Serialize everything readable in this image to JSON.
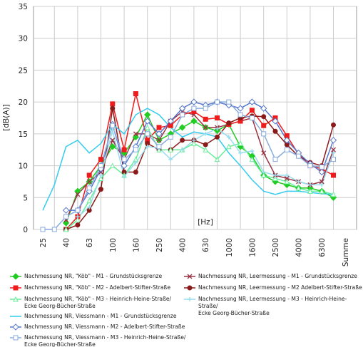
{
  "chart_data": {
    "type": "line",
    "y_label": "[dB(A)]",
    "x_label": "[Hz]",
    "categories": [
      "25",
      null,
      "40",
      null,
      "63",
      null,
      "100",
      null,
      "160",
      null,
      "250",
      null,
      "400",
      null,
      "630",
      null,
      "1000",
      null,
      "1600",
      null,
      "2500",
      null,
      "4000",
      null,
      "6300",
      null,
      "Summe"
    ],
    "ylim": [
      0,
      35
    ],
    "yticks": [
      0,
      5,
      10,
      15,
      20,
      25,
      30,
      35
    ],
    "grid": true,
    "legend": "bottom",
    "series": [
      {
        "name": "Nachmessung NR, \"Köb\" - M1 - Grundstücksgrenze",
        "color": "#22cc22",
        "marker": "diamond",
        "marker_fill": "#22cc22",
        "values": [
          null,
          null,
          1,
          6,
          7.5,
          10,
          13,
          12,
          14.5,
          18,
          14,
          15,
          16,
          17,
          16,
          15.5,
          16.5,
          13,
          11.5,
          8.5,
          7.5,
          7,
          6.5,
          6.5,
          6,
          5,
          null
        ]
      },
      {
        "name": "Nachmessung NR, Leermessung - M1 - Grundstücksgrenze",
        "color": "#993344",
        "marker": "x",
        "marker_fill": "#993344",
        "values": [
          null,
          null,
          1.5,
          5.5,
          7.5,
          9,
          14,
          11,
          15,
          15,
          14,
          17,
          18.5,
          18,
          16,
          16,
          16.5,
          17,
          17.5,
          12,
          8.5,
          8,
          7.5,
          7,
          7.5,
          12.5,
          null
        ]
      },
      {
        "name": "Nachmessung NR, \"Köb\" - M2 - Adelbert-Stifter-Straße",
        "color": "#ee1c1c",
        "marker": "square",
        "marker_fill": "#ee1c1c",
        "values": [
          null,
          null,
          0,
          2,
          8.5,
          11,
          19.7,
          12.5,
          21.3,
          14,
          16,
          16.3,
          18,
          18.5,
          17.3,
          17.5,
          16.5,
          17,
          18.7,
          16.3,
          17.5,
          14.7,
          11.8,
          10,
          9.5,
          8.5,
          null
        ]
      },
      {
        "name": "Nachmessung NR, Leermessung - M2 Adelbert-Stifter-Straße",
        "color": "#8b1a1a",
        "marker": "circle",
        "marker_fill": "#8b1a1a",
        "values": [
          null,
          null,
          0,
          0.7,
          3,
          6.3,
          19,
          9,
          9,
          13.5,
          12.5,
          12.5,
          14,
          14,
          13.3,
          14.5,
          16.7,
          17.5,
          17.8,
          17.7,
          15.4,
          13.3,
          11.5,
          10.5,
          10,
          16.4,
          null
        ]
      },
      {
        "name": "Nachmessung NR, \"Köb\" - M3 - Heinrich-Heine-Straße/\nEcke Georg-Bücher-Straße",
        "color": "#66ee99",
        "marker": "triangle",
        "marker_fill": "#ffffff",
        "values": [
          null,
          null,
          0,
          1.5,
          4.5,
          8,
          10,
          8.5,
          11,
          16,
          12.5,
          12.5,
          12.5,
          13.5,
          12.5,
          11,
          13,
          13.5,
          11,
          8.5,
          8,
          7.5,
          6.5,
          6,
          6,
          5.5,
          null
        ]
      },
      {
        "name": "Nachmessung NR, Leermessung - M3 - Heinrich-Heine-Straße/\nEcke Georg-Bücher-Straße",
        "color": "#99ddee",
        "marker": "plus",
        "marker_fill": "#99ddee",
        "values": [
          null,
          null,
          null,
          2,
          3.5,
          8.5,
          15.5,
          8.3,
          10.5,
          13,
          12.8,
          11,
          12.5,
          14,
          15,
          15.8,
          14.5,
          12,
          12.3,
          9,
          8.5,
          8.5,
          7.5,
          7,
          7,
          12,
          null
        ]
      },
      {
        "name": "Nachmessung NR, Viessmann - M1 - Grundstücksgrenze",
        "color": "#33ccee",
        "marker": "none",
        "marker_fill": "#33ccee",
        "values": [
          3,
          7,
          13,
          14,
          12,
          13.5,
          16.5,
          15,
          18,
          19,
          18,
          16,
          14.5,
          15.3,
          15,
          14.5,
          12,
          10,
          7.8,
          6,
          5.5,
          6,
          6,
          5.8,
          5.6,
          5.5,
          null
        ]
      },
      {
        "name": "Nachmessung NR, Viessmann - M2 - Adelbert-Stifter-Straße",
        "color": "#5577cc",
        "marker": "diamond",
        "marker_fill": "#ffffff",
        "values": [
          null,
          null,
          3,
          3,
          6,
          9.5,
          16.5,
          10,
          13,
          17,
          15,
          17,
          19,
          20,
          19.5,
          20,
          19.5,
          19,
          20,
          19,
          17,
          14,
          12,
          10.3,
          9,
          14,
          null
        ]
      },
      {
        "name": "Nachmessung NR, Viessmann - M3 - Heinrich-Heine-Straße/\nEcke Georg-Bücher-Straße",
        "color": "#88aadd",
        "marker": "square",
        "marker_fill": "#ffffff",
        "values": [
          0,
          0,
          2,
          3,
          6.5,
          10,
          16.3,
          11,
          12.5,
          15,
          13,
          14.5,
          18,
          19,
          19,
          20,
          20,
          18,
          17.5,
          15,
          11,
          12.5,
          11.5,
          10,
          9.8,
          11,
          null
        ]
      }
    ]
  }
}
